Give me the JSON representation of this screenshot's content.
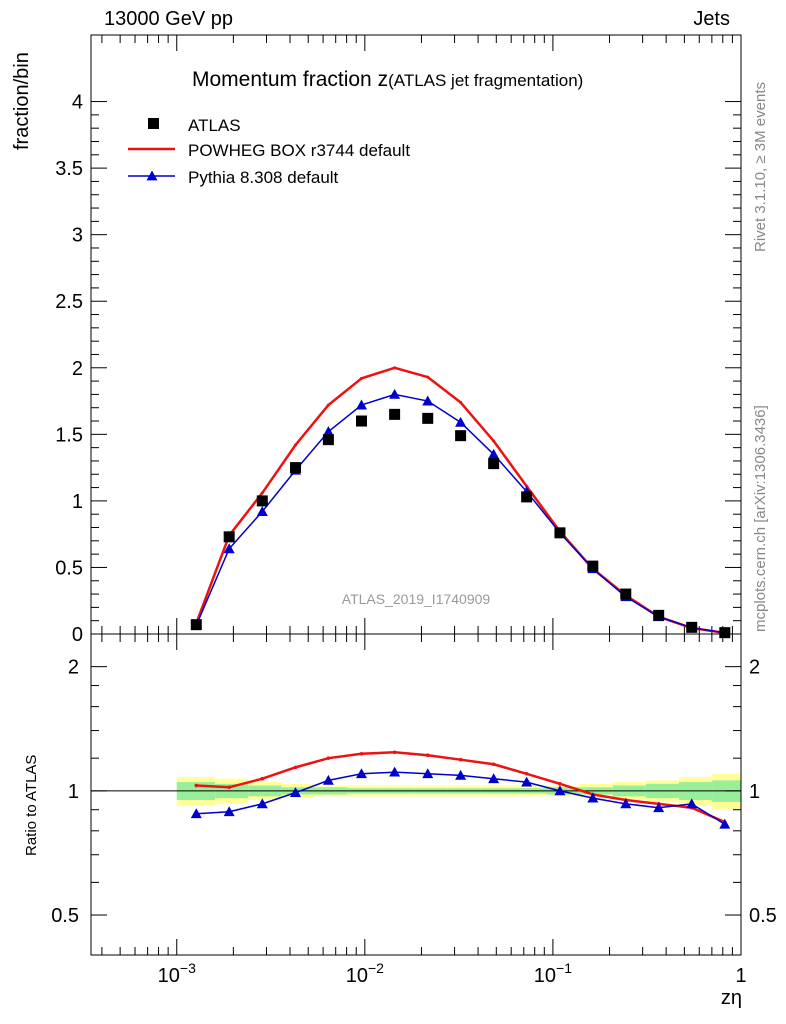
{
  "header": {
    "left": "13000 GeV pp",
    "right": "Jets"
  },
  "side_labels": {
    "rivet": "Rivet 3.1.10, ≥ 3M events",
    "mcplots": "mcplots.cern.ch [arXiv:1306.3436]"
  },
  "colors": {
    "data": "#000000",
    "powheg": "#ee1111",
    "pythia": "#0000cc",
    "band_yellow": "#ffff99",
    "band_green": "#99ee99"
  },
  "chart_data": [
    {
      "type": "scatter",
      "title": "Momentum fraction z",
      "title_suffix": "(ATLAS jet fragmentation)",
      "ylabel": "fraction/bin",
      "watermark": "ATLAS_2019_I1740909",
      "xscale": "log",
      "xlim": [
        0.00035,
        1
      ],
      "ylim": [
        0,
        4.5
      ],
      "yticks": [
        0,
        0.5,
        1,
        1.5,
        2,
        2.5,
        3,
        3.5,
        4
      ],
      "ytick_labels": [
        "0",
        "0.5",
        "1",
        "1.5",
        "2",
        "2.5",
        "3",
        "3.5",
        "4"
      ],
      "legend_position": "top-left",
      "x": [
        0.00127,
        0.0019,
        0.00285,
        0.00428,
        0.0064,
        0.0096,
        0.0144,
        0.0216,
        0.0323,
        0.0484,
        0.0725,
        0.109,
        0.163,
        0.244,
        0.365,
        0.547,
        0.82
      ],
      "series": [
        {
          "name": "ATLAS",
          "style": "square",
          "values": [
            0.07,
            0.73,
            1.0,
            1.25,
            1.46,
            1.6,
            1.65,
            1.62,
            1.49,
            1.28,
            1.03,
            0.76,
            0.51,
            0.3,
            0.14,
            0.05,
            0.01
          ]
        },
        {
          "name": "POWHEG BOX r3744 default",
          "style": "line-red",
          "values": [
            0.08,
            0.74,
            1.06,
            1.42,
            1.72,
            1.92,
            2.0,
            1.93,
            1.74,
            1.45,
            1.11,
            0.77,
            0.49,
            0.29,
            0.13,
            0.045,
            0.008
          ]
        },
        {
          "name": "Pythia 8.308 default",
          "style": "line-blue-triangle",
          "values": [
            0.065,
            0.64,
            0.92,
            1.23,
            1.52,
            1.72,
            1.8,
            1.75,
            1.59,
            1.35,
            1.07,
            0.76,
            0.49,
            0.28,
            0.13,
            0.047,
            0.009
          ]
        }
      ]
    },
    {
      "type": "line",
      "ylabel": "Ratio to ATLAS",
      "xlabel": "zη",
      "xscale": "log",
      "yscale": "log",
      "xlim": [
        0.00035,
        1
      ],
      "ylim": [
        0.4,
        2.4
      ],
      "yticks": [
        0.5,
        1,
        2
      ],
      "ytick_labels": [
        "0.5",
        "1",
        "2"
      ],
      "xticks": [
        0.001,
        0.01,
        0.1,
        1
      ],
      "xtick_labels": [
        "10−3",
        "10−2",
        "10−1",
        "1"
      ],
      "bin_edges": [
        0.001,
        0.0016,
        0.0024,
        0.0036,
        0.0054,
        0.0081,
        0.0122,
        0.0183,
        0.0274,
        0.0411,
        0.0617,
        0.0925,
        0.139,
        0.208,
        0.312,
        0.468,
        0.702,
        1.0
      ],
      "band_yellow": [
        0.08,
        0.07,
        0.05,
        0.04,
        0.03,
        0.03,
        0.03,
        0.03,
        0.03,
        0.03,
        0.03,
        0.03,
        0.04,
        0.05,
        0.06,
        0.08,
        0.1
      ],
      "band_green": [
        0.05,
        0.04,
        0.03,
        0.02,
        0.02,
        0.015,
        0.015,
        0.015,
        0.015,
        0.015,
        0.015,
        0.02,
        0.02,
        0.03,
        0.04,
        0.05,
        0.06
      ],
      "x": [
        0.00127,
        0.0019,
        0.00285,
        0.00428,
        0.0064,
        0.0096,
        0.0144,
        0.0216,
        0.0323,
        0.0484,
        0.0725,
        0.109,
        0.163,
        0.244,
        0.365,
        0.547,
        0.82
      ],
      "series": [
        {
          "name": "POWHEG BOX r3744 default",
          "values": [
            1.03,
            1.02,
            1.07,
            1.14,
            1.2,
            1.23,
            1.24,
            1.22,
            1.19,
            1.16,
            1.1,
            1.04,
            0.98,
            0.95,
            0.93,
            0.91,
            0.84
          ]
        },
        {
          "name": "Pythia 8.308 default",
          "values": [
            0.88,
            0.89,
            0.93,
            0.99,
            1.06,
            1.1,
            1.11,
            1.1,
            1.09,
            1.07,
            1.05,
            1.0,
            0.96,
            0.93,
            0.91,
            0.93,
            0.83
          ]
        }
      ]
    }
  ]
}
